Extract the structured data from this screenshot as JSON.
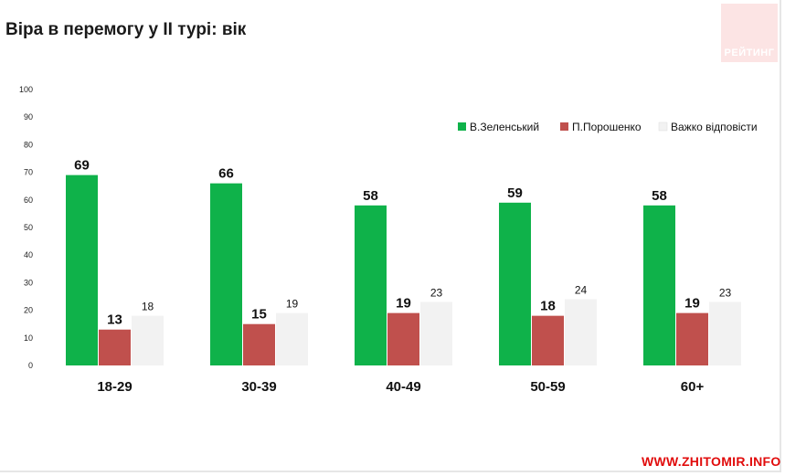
{
  "title": "Віра в перемогу у ІІ турі: вік",
  "logo": {
    "text": "РЕЙТИНГ"
  },
  "watermark": "WWW.ZHITOMIR.INFO",
  "colors": {
    "zelensky": "#0fb24a",
    "poroshenko": "#c0504d",
    "hard": "#f2f2f2"
  },
  "chart_data": {
    "type": "bar",
    "categories": [
      "18-29",
      "30-39",
      "40-49",
      "50-59",
      "60+"
    ],
    "series": [
      {
        "name": "В.Зеленський",
        "color": "#0fb24a",
        "values": [
          69,
          66,
          58,
          59,
          58
        ],
        "labels": [
          "69",
          "66",
          "58",
          "59",
          "58"
        ]
      },
      {
        "name": "П.Порошенко",
        "color": "#c0504d",
        "values": [
          13,
          15,
          19,
          18,
          19
        ],
        "labels": [
          "13",
          "15",
          "19",
          "18",
          "19"
        ]
      },
      {
        "name": "Важко відповісти",
        "color": "#f2f2f2",
        "values": [
          18,
          19,
          23,
          24,
          23
        ],
        "labels": [
          "18",
          "19",
          "23",
          "24",
          "23"
        ]
      }
    ],
    "yticks": [
      "0",
      "10",
      "20",
      "30",
      "40",
      "50",
      "60",
      "70",
      "80",
      "90",
      "100"
    ],
    "ylim": [
      0,
      100
    ],
    "grid": false,
    "legend_position": "top-right"
  }
}
